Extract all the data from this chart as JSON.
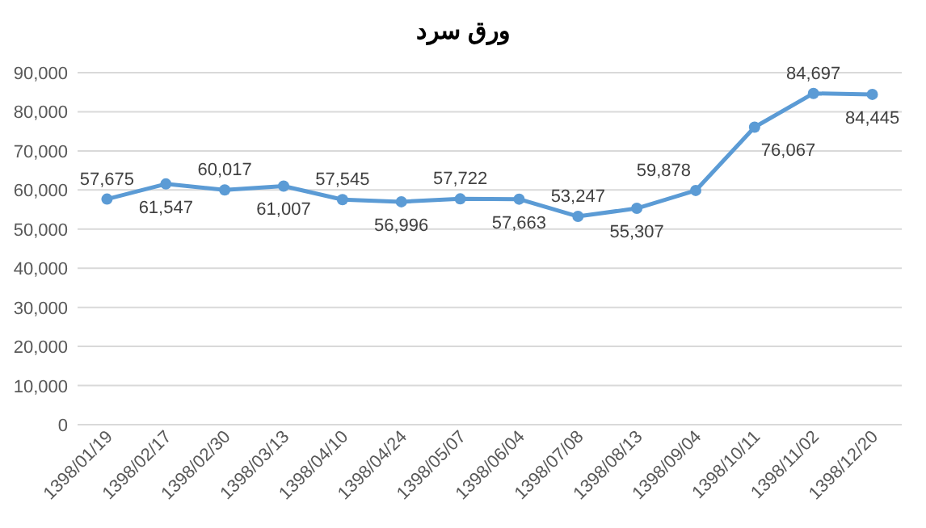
{
  "chart_data": {
    "type": "line",
    "title": "ورق سرد",
    "categories": [
      "1398/01/19",
      "1398/02/17",
      "1398/02/30",
      "1398/03/13",
      "1398/04/10",
      "1398/04/24",
      "1398/05/07",
      "1398/06/04",
      "1398/07/08",
      "1398/08/13",
      "1398/09/04",
      "1398/10/11",
      "1398/11/02",
      "1398/12/20"
    ],
    "series": [
      {
        "color": "#5b9bd5",
        "values": [
          57675,
          61547,
          60017,
          61007,
          57545,
          56996,
          57722,
          57663,
          53247,
          55307,
          59878,
          76067,
          84697,
          84445
        ],
        "value_labels": [
          "57,675",
          "61,547",
          "60,017",
          "61,007",
          "57,545",
          "56,996",
          "57,722",
          "57,663",
          "53,247",
          "55,307",
          "59,878",
          "76,067",
          "84,697",
          "84,445"
        ]
      }
    ],
    "ylim": [
      0,
      90000
    ],
    "yticks": [
      {
        "value": 0,
        "label": "0"
      },
      {
        "value": 10000,
        "label": "10,000"
      },
      {
        "value": 20000,
        "label": "20,000"
      },
      {
        "value": 30000,
        "label": "30,000"
      },
      {
        "value": 40000,
        "label": "40,000"
      },
      {
        "value": 50000,
        "label": "50,000"
      },
      {
        "value": 60000,
        "label": "60,000"
      },
      {
        "value": 70000,
        "label": "70,000"
      },
      {
        "value": 80000,
        "label": "80,000"
      },
      {
        "value": 90000,
        "label": "90,000"
      }
    ],
    "grid": "y",
    "marker": "circle",
    "line_style": "solid"
  }
}
